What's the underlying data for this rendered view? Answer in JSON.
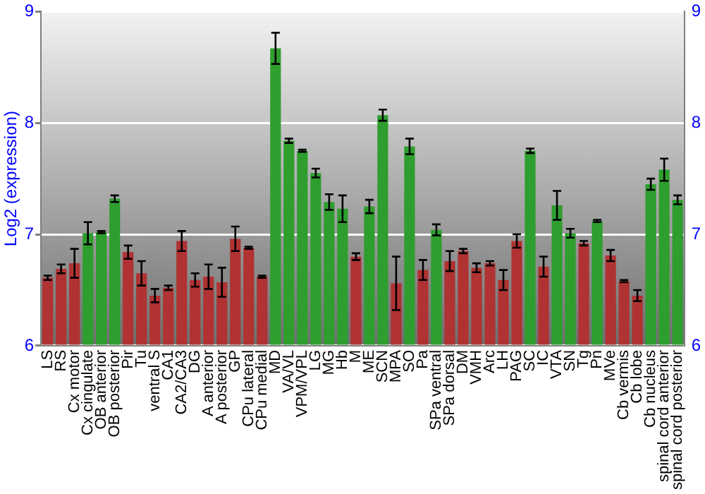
{
  "chart_data": {
    "type": "bar",
    "ylabel": "Log2 (expression)",
    "categories": [
      "LS",
      "RS",
      "Cx motor",
      "Cx cingulate",
      "OB anterior",
      "OB posterior",
      "Pir",
      "Tu",
      "ventral S",
      "CA1",
      "CA2/CA3",
      "DG",
      "A anterior",
      "A posterior",
      "GP",
      "CPu lateral",
      "CPu medial",
      "MD",
      "VA/VL",
      "VPM/VPL",
      "LG",
      "MG",
      "Hb",
      "M",
      "ME",
      "SCN",
      "MPA",
      "SO",
      "Pa",
      "SPa ventral",
      "SPa dorsal",
      "DM",
      "VMH",
      "Arc",
      "LH",
      "PAG",
      "SC",
      "IC",
      "VTA",
      "SN",
      "Tg",
      "Pn",
      "MVe",
      "Cb vermis",
      "Cb lobe",
      "Cb nucleus",
      "spinal cord anterior",
      "spinal cord posterior"
    ],
    "values": [
      6.61,
      6.69,
      6.74,
      7.01,
      7.02,
      7.32,
      6.84,
      6.65,
      6.45,
      6.52,
      6.94,
      6.59,
      6.62,
      6.57,
      6.96,
      6.88,
      6.62,
      8.67,
      7.84,
      7.75,
      7.55,
      7.29,
      7.23,
      6.8,
      7.25,
      8.07,
      6.56,
      7.79,
      6.68,
      7.04,
      6.76,
      6.85,
      6.7,
      6.74,
      6.59,
      6.94,
      7.75,
      6.71,
      7.26,
      7.01,
      6.92,
      7.12,
      6.81,
      6.58,
      6.45,
      7.45,
      7.58,
      7.31
    ],
    "errors": [
      0.02,
      0.04,
      0.13,
      0.1,
      0.01,
      0.03,
      0.06,
      0.11,
      0.06,
      0.02,
      0.09,
      0.06,
      0.11,
      0.13,
      0.11,
      0.01,
      0.01,
      0.14,
      0.02,
      0.01,
      0.04,
      0.07,
      0.12,
      0.03,
      0.06,
      0.05,
      0.24,
      0.07,
      0.09,
      0.05,
      0.09,
      0.02,
      0.04,
      0.02,
      0.09,
      0.06,
      0.02,
      0.09,
      0.13,
      0.04,
      0.02,
      0.01,
      0.05,
      0.01,
      0.05,
      0.05,
      0.1,
      0.04
    ],
    "colors": [
      "#b03232",
      "#b03232",
      "#b03232",
      "#2e9e2e",
      "#2e9e2e",
      "#2e9e2e",
      "#b03232",
      "#b03232",
      "#b03232",
      "#b03232",
      "#b03232",
      "#b03232",
      "#b03232",
      "#b03232",
      "#b03232",
      "#b03232",
      "#b03232",
      "#2e9e2e",
      "#2e9e2e",
      "#2e9e2e",
      "#2e9e2e",
      "#2e9e2e",
      "#2e9e2e",
      "#b03232",
      "#2e9e2e",
      "#2e9e2e",
      "#b03232",
      "#2e9e2e",
      "#b03232",
      "#2e9e2e",
      "#b03232",
      "#b03232",
      "#b03232",
      "#b03232",
      "#b03232",
      "#b03232",
      "#2e9e2e",
      "#b03232",
      "#2e9e2e",
      "#2e9e2e",
      "#b03232",
      "#2e9e2e",
      "#b03232",
      "#b03232",
      "#b03232",
      "#2e9e2e",
      "#2e9e2e",
      "#2e9e2e"
    ],
    "ylim": [
      6,
      9
    ],
    "yticks": [
      6,
      7,
      8,
      9
    ],
    "y2lim": [
      6,
      9
    ],
    "y2ticks": [
      6,
      7,
      8,
      9
    ],
    "grid": "y",
    "legend": false
  }
}
